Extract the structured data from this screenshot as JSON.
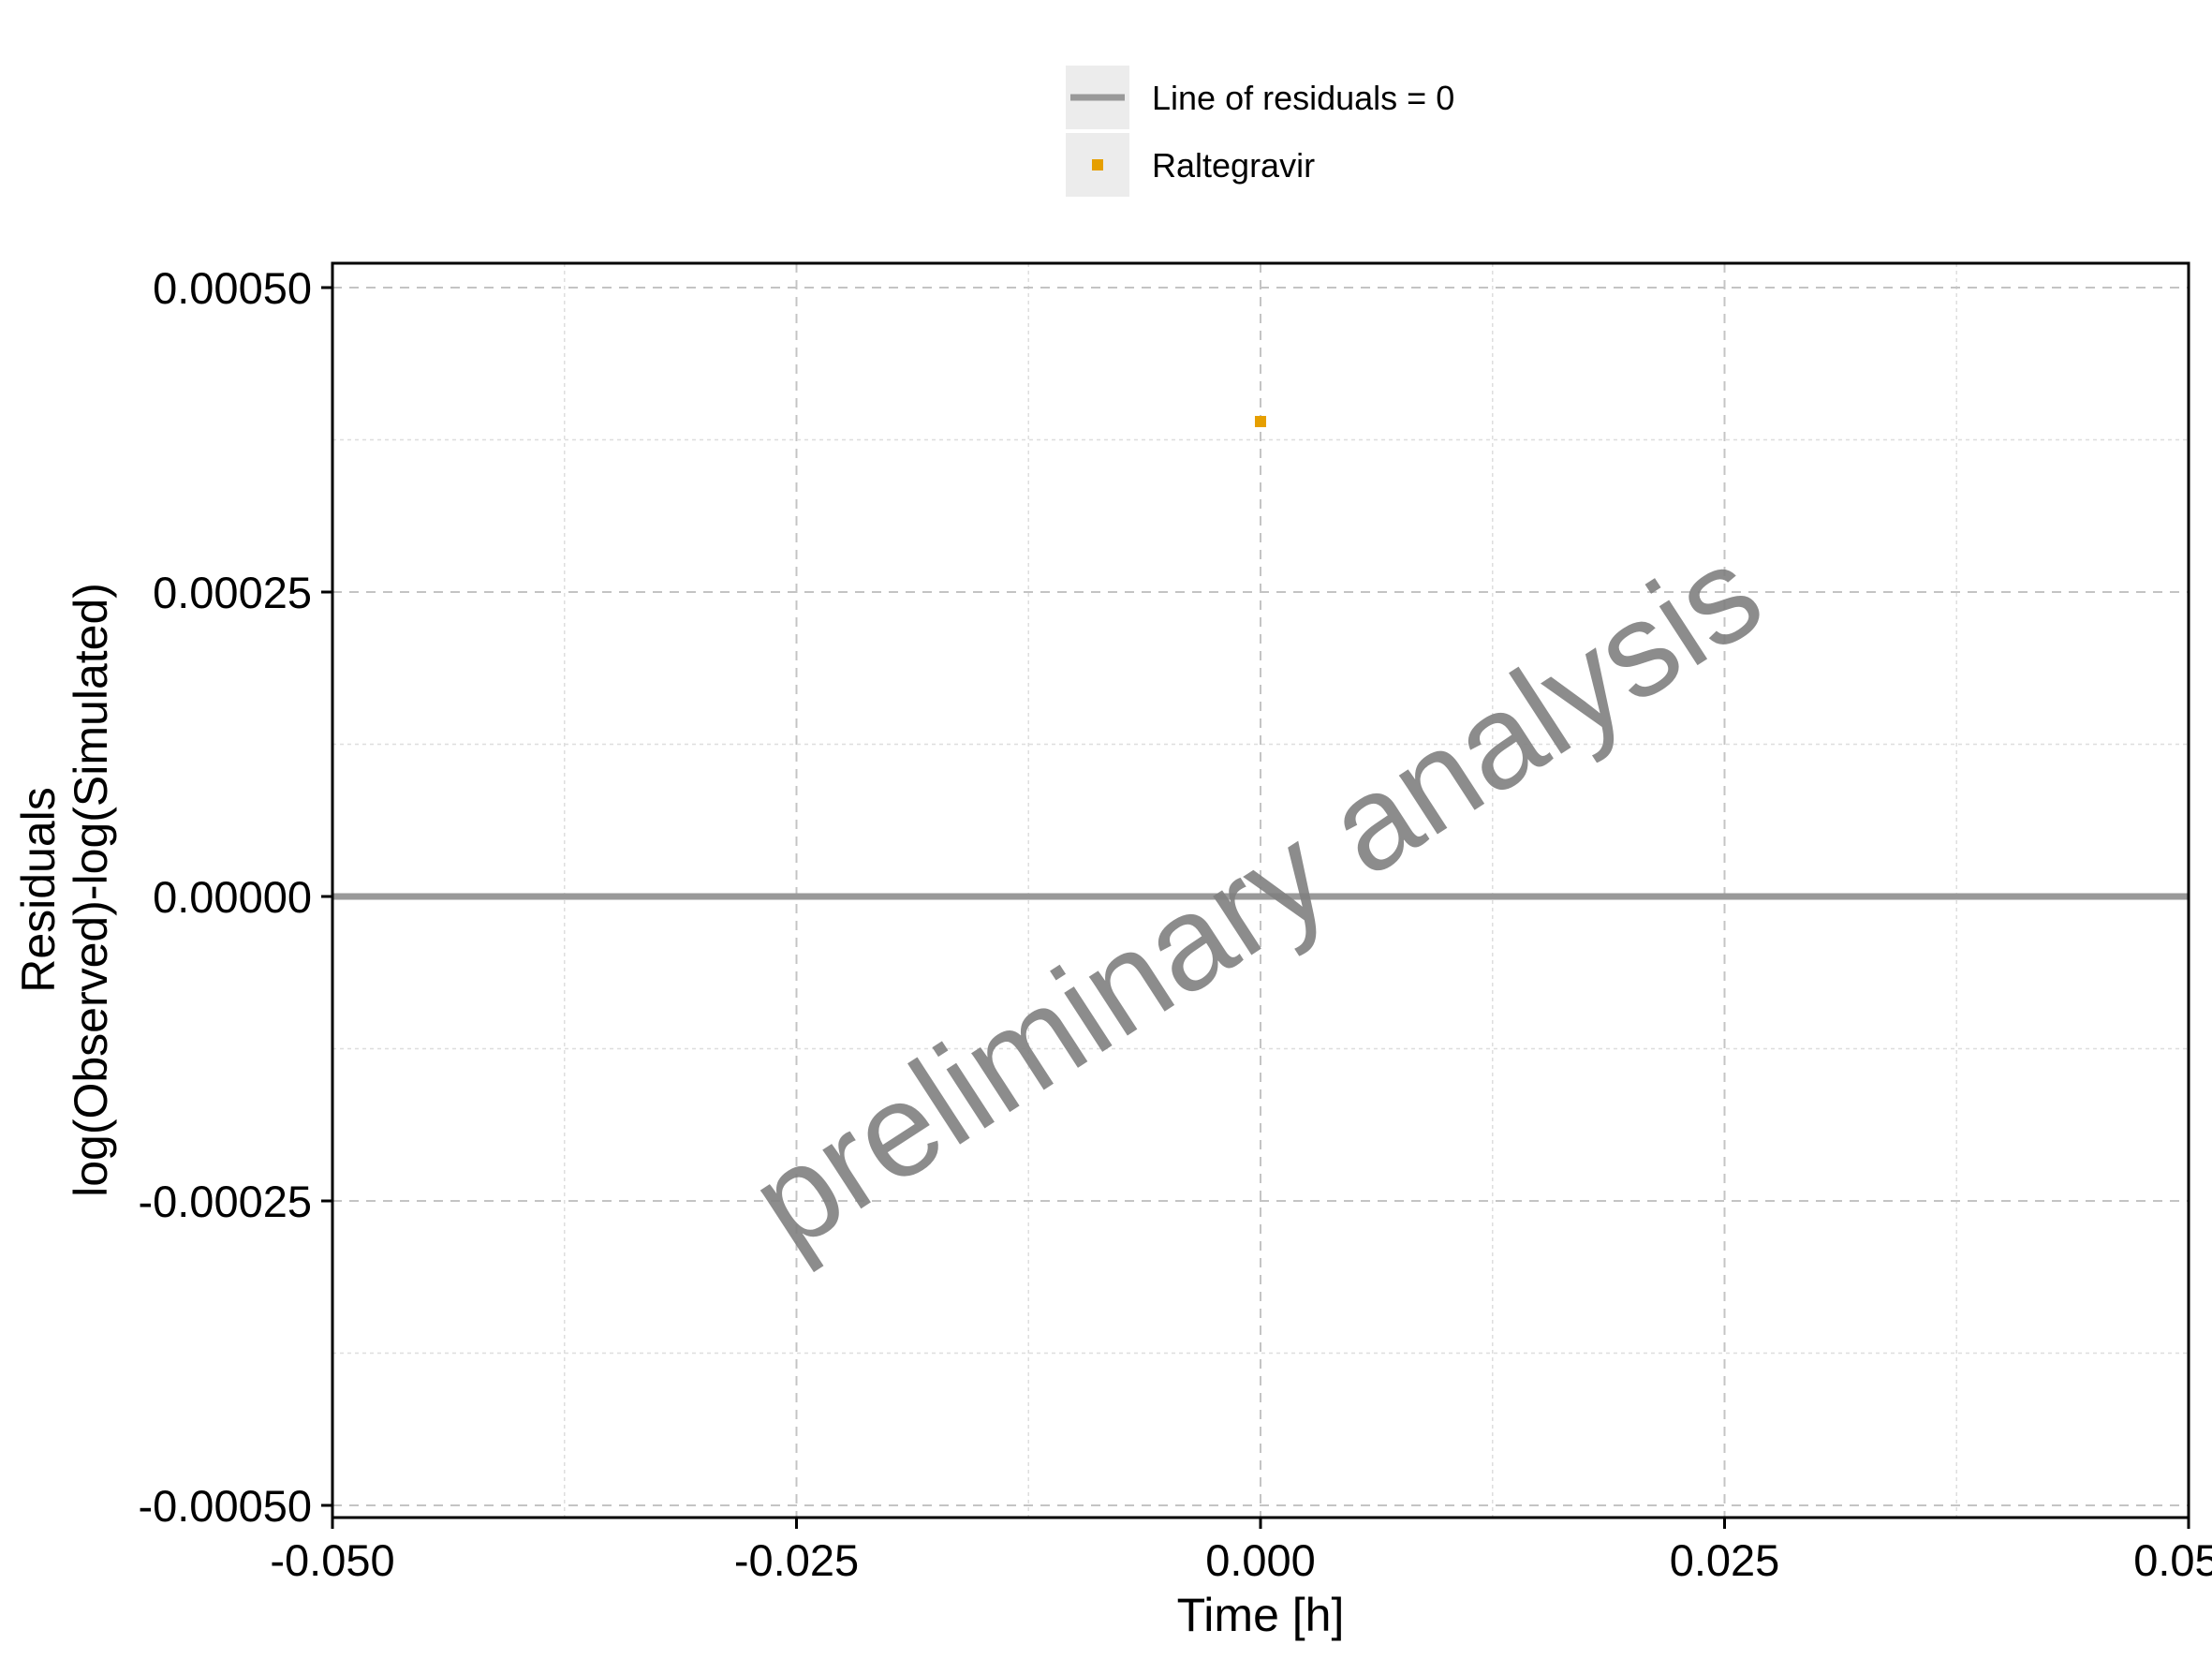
{
  "chart_data": {
    "type": "scatter",
    "xlabel": "Time [h]",
    "ylabel": [
      "Residuals",
      "log(Observed)-log(Simulated)"
    ],
    "xlim": [
      -0.05,
      0.05
    ],
    "ylim": [
      -0.00051,
      0.00052
    ],
    "x_ticks": [
      -0.05,
      -0.025,
      0.0,
      0.025,
      0.05
    ],
    "x_tick_labels": [
      "-0.050",
      "-0.025",
      "0.000",
      "0.025",
      "0.050"
    ],
    "y_ticks": [
      0.0005,
      0.00025,
      0.0,
      -0.00025,
      -0.0005
    ],
    "y_tick_labels": [
      "0.00050",
      "0.00025",
      "0.00000",
      "-0.00025",
      "-0.00050"
    ],
    "grid": true,
    "legend_position": "top-center",
    "reference_line": {
      "label": "Line of residuals = 0",
      "y": 0,
      "color": "#999999"
    },
    "series": [
      {
        "name": "Raltegravir",
        "color": "#E69F00",
        "marker": "square",
        "points": [
          {
            "x": 0.0,
            "y": 0.00039
          }
        ]
      }
    ],
    "watermark": "preliminary analysis"
  }
}
